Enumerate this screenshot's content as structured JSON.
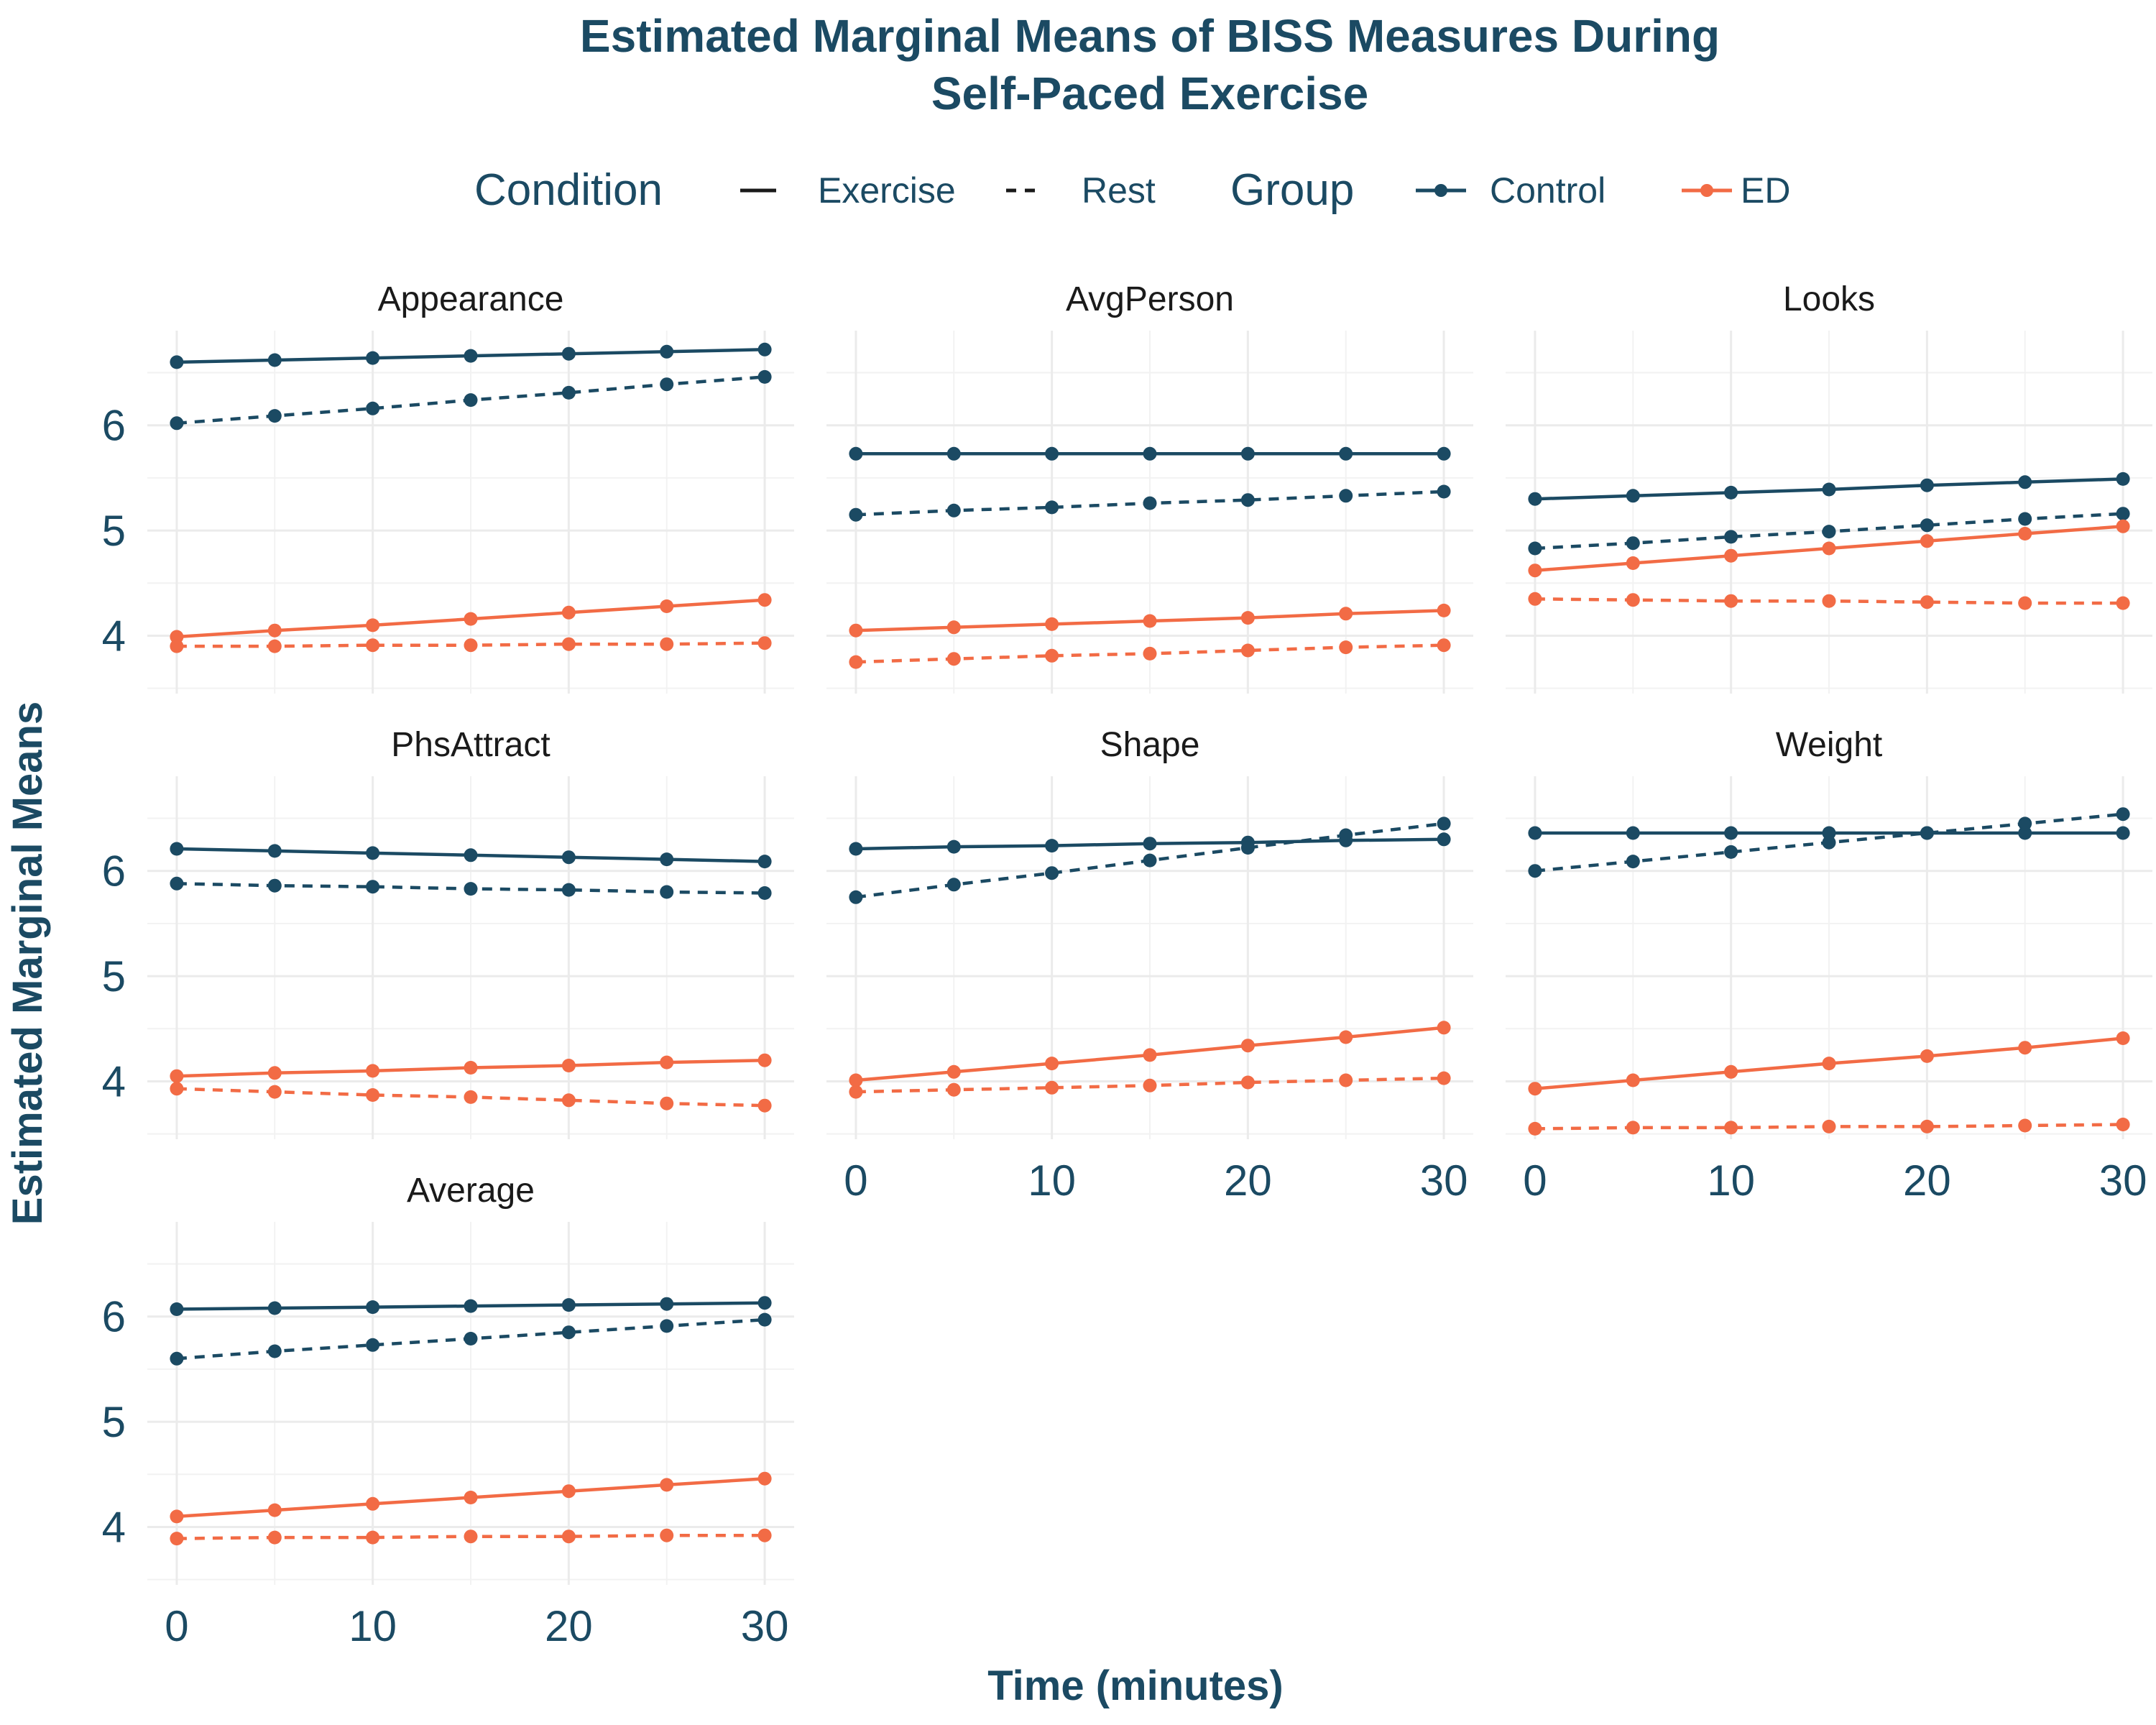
{
  "chart_data": {
    "type": "line",
    "title_lines": [
      "Estimated Marginal Means of BISS Measures During",
      "Self-Paced Exercise"
    ],
    "xlabel": "Time (minutes)",
    "ylabel": "Estimated Marginal Means",
    "x": [
      0,
      5,
      10,
      15,
      20,
      25,
      30
    ],
    "xticks": [
      "0",
      "10",
      "20",
      "30"
    ],
    "yticks": [
      "4",
      "5",
      "6"
    ],
    "xlim": [
      -1.5,
      31.5
    ],
    "ylim": [
      3.45,
      6.9
    ],
    "legend": {
      "position": "top",
      "condition_title": "Condition",
      "condition_entries": [
        {
          "label": "Exercise",
          "linetype": "solid"
        },
        {
          "label": "Rest",
          "linetype": "dashed"
        }
      ],
      "group_title": "Group",
      "group_entries": [
        {
          "label": "Control",
          "color": "#1b4a63"
        },
        {
          "label": "ED",
          "color": "#f26b45"
        }
      ]
    },
    "colors": {
      "Control": "#1b4a63",
      "ED": "#f26b45"
    },
    "panels": [
      {
        "name": "Appearance",
        "series": [
          {
            "group": "Control",
            "condition": "Exercise",
            "values": [
              6.6,
              6.62,
              6.64,
              6.66,
              6.68,
              6.7,
              6.72
            ]
          },
          {
            "group": "Control",
            "condition": "Rest",
            "values": [
              6.02,
              6.09,
              6.16,
              6.24,
              6.31,
              6.39,
              6.46
            ]
          },
          {
            "group": "ED",
            "condition": "Exercise",
            "values": [
              3.99,
              4.05,
              4.1,
              4.16,
              4.22,
              4.28,
              4.34
            ]
          },
          {
            "group": "ED",
            "condition": "Rest",
            "values": [
              3.9,
              3.9,
              3.91,
              3.91,
              3.92,
              3.92,
              3.93
            ]
          }
        ]
      },
      {
        "name": "AvgPerson",
        "series": [
          {
            "group": "Control",
            "condition": "Exercise",
            "values": [
              5.73,
              5.73,
              5.73,
              5.73,
              5.73,
              5.73,
              5.73
            ]
          },
          {
            "group": "Control",
            "condition": "Rest",
            "values": [
              5.15,
              5.19,
              5.22,
              5.26,
              5.29,
              5.33,
              5.37
            ]
          },
          {
            "group": "ED",
            "condition": "Exercise",
            "values": [
              4.05,
              4.08,
              4.11,
              4.14,
              4.17,
              4.21,
              4.24
            ]
          },
          {
            "group": "ED",
            "condition": "Rest",
            "values": [
              3.75,
              3.78,
              3.81,
              3.83,
              3.86,
              3.89,
              3.91
            ]
          }
        ]
      },
      {
        "name": "Looks",
        "series": [
          {
            "group": "Control",
            "condition": "Exercise",
            "values": [
              5.3,
              5.33,
              5.36,
              5.39,
              5.43,
              5.46,
              5.49
            ]
          },
          {
            "group": "Control",
            "condition": "Rest",
            "values": [
              4.83,
              4.88,
              4.94,
              4.99,
              5.05,
              5.11,
              5.16
            ]
          },
          {
            "group": "ED",
            "condition": "Exercise",
            "values": [
              4.62,
              4.69,
              4.76,
              4.83,
              4.9,
              4.97,
              5.04
            ]
          },
          {
            "group": "ED",
            "condition": "Rest",
            "values": [
              4.35,
              4.34,
              4.33,
              4.33,
              4.32,
              4.31,
              4.31
            ]
          }
        ]
      },
      {
        "name": "PhsAttract",
        "series": [
          {
            "group": "Control",
            "condition": "Exercise",
            "values": [
              6.21,
              6.19,
              6.17,
              6.15,
              6.13,
              6.11,
              6.09
            ]
          },
          {
            "group": "Control",
            "condition": "Rest",
            "values": [
              5.88,
              5.86,
              5.85,
              5.83,
              5.82,
              5.8,
              5.79
            ]
          },
          {
            "group": "ED",
            "condition": "Exercise",
            "values": [
              4.05,
              4.08,
              4.1,
              4.13,
              4.15,
              4.18,
              4.2
            ]
          },
          {
            "group": "ED",
            "condition": "Rest",
            "values": [
              3.93,
              3.9,
              3.87,
              3.85,
              3.82,
              3.79,
              3.77
            ]
          }
        ]
      },
      {
        "name": "Shape",
        "series": [
          {
            "group": "Control",
            "condition": "Exercise",
            "values": [
              6.21,
              6.23,
              6.24,
              6.26,
              6.27,
              6.29,
              6.3
            ]
          },
          {
            "group": "Control",
            "condition": "Rest",
            "values": [
              5.75,
              5.87,
              5.98,
              6.1,
              6.22,
              6.34,
              6.45
            ]
          },
          {
            "group": "ED",
            "condition": "Exercise",
            "values": [
              4.01,
              4.09,
              4.17,
              4.25,
              4.34,
              4.42,
              4.51
            ]
          },
          {
            "group": "ED",
            "condition": "Rest",
            "values": [
              3.9,
              3.92,
              3.94,
              3.96,
              3.99,
              4.01,
              4.03
            ]
          }
        ]
      },
      {
        "name": "Weight",
        "series": [
          {
            "group": "Control",
            "condition": "Exercise",
            "values": [
              6.36,
              6.36,
              6.36,
              6.36,
              6.36,
              6.36,
              6.36
            ]
          },
          {
            "group": "Control",
            "condition": "Rest",
            "values": [
              6.0,
              6.09,
              6.18,
              6.27,
              6.36,
              6.45,
              6.54
            ]
          },
          {
            "group": "ED",
            "condition": "Exercise",
            "values": [
              3.93,
              4.01,
              4.09,
              4.17,
              4.24,
              4.32,
              4.41
            ]
          },
          {
            "group": "ED",
            "condition": "Rest",
            "values": [
              3.55,
              3.56,
              3.56,
              3.57,
              3.57,
              3.58,
              3.59
            ]
          }
        ]
      },
      {
        "name": "Average",
        "series": [
          {
            "group": "Control",
            "condition": "Exercise",
            "values": [
              6.07,
              6.08,
              6.09,
              6.1,
              6.11,
              6.12,
              6.13
            ]
          },
          {
            "group": "Control",
            "condition": "Rest",
            "values": [
              5.6,
              5.67,
              5.73,
              5.79,
              5.85,
              5.91,
              5.97
            ]
          },
          {
            "group": "ED",
            "condition": "Exercise",
            "values": [
              4.1,
              4.16,
              4.22,
              4.28,
              4.34,
              4.4,
              4.46
            ]
          },
          {
            "group": "ED",
            "condition": "Rest",
            "values": [
              3.89,
              3.9,
              3.9,
              3.91,
              3.91,
              3.92,
              3.92
            ]
          }
        ]
      }
    ]
  }
}
